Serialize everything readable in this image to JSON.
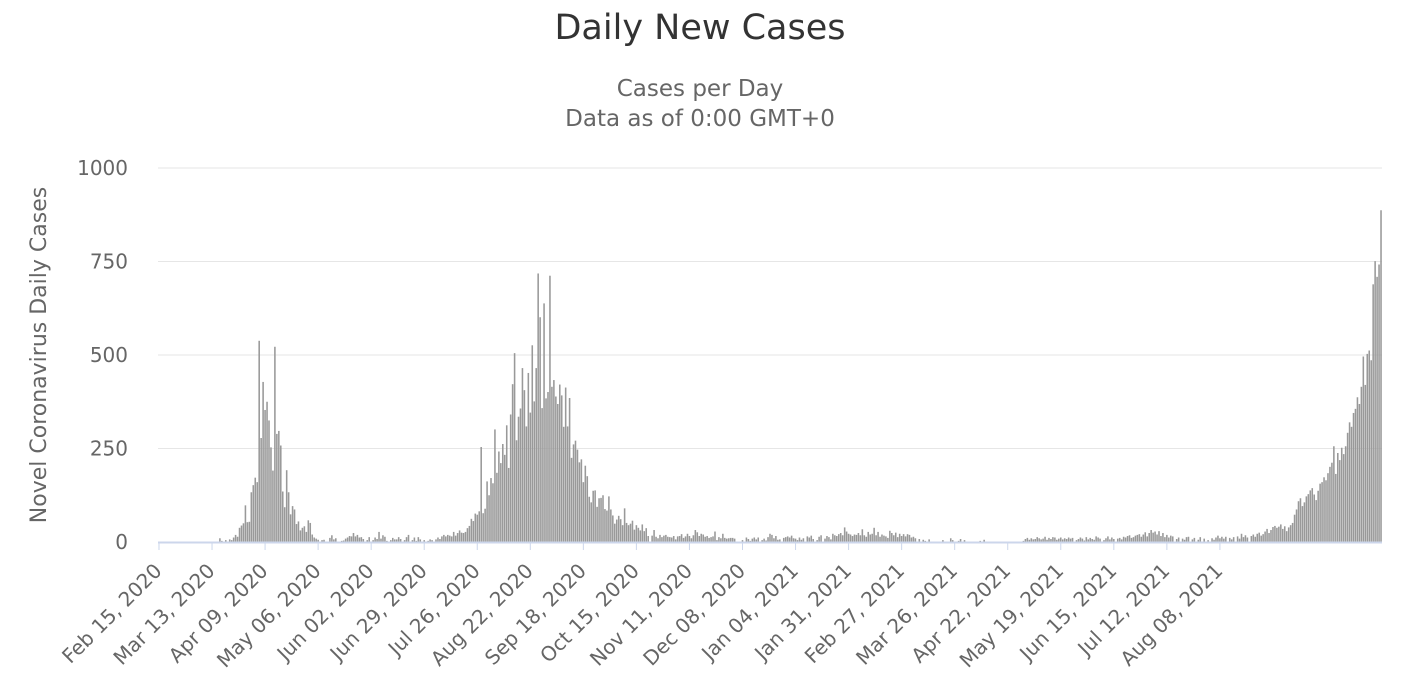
{
  "chart_data": {
    "type": "bar",
    "title": "Daily New Cases",
    "subtitle_lines": [
      "Cases per Day",
      "Data as of 0:00 GMT+0"
    ],
    "ylabel": "Novel Coronavirus Daily Cases",
    "xlabel": "",
    "ylim": [
      0,
      1000
    ],
    "yticks": [
      0,
      250,
      500,
      750,
      1000
    ],
    "xticks": [
      "Feb 15, 2020",
      "Mar 13, 2020",
      "Apr 09, 2020",
      "May 06, 2020",
      "Jun 02, 2020",
      "Jun 29, 2020",
      "Jul 26, 2020",
      "Aug 22, 2020",
      "Sep 18, 2020",
      "Oct 15, 2020",
      "Nov 11, 2020",
      "Dec 08, 2020",
      "Jan 04, 2021",
      "Jan 31, 2021",
      "Feb 27, 2021",
      "Mar 26, 2021",
      "Apr 22, 2021",
      "May 19, 2021",
      "Jun 15, 2021",
      "Jul 12, 2021",
      "Aug 08, 2021"
    ],
    "start_date": "2020-02-15",
    "series": [
      {
        "color": "#999999",
        "values": [
          0,
          0,
          0,
          0,
          0,
          0,
          0,
          0,
          0,
          0,
          0,
          0,
          0,
          0,
          0,
          0,
          0,
          0,
          0,
          0,
          0,
          0,
          0,
          0,
          0,
          0,
          0,
          0,
          0,
          0,
          1,
          10,
          3,
          0,
          5,
          0,
          7,
          5,
          12,
          19,
          14,
          38,
          44,
          50,
          98,
          53,
          54,
          133,
          152,
          172,
          160,
          538,
          278,
          428,
          353,
          375,
          325,
          253,
          191,
          522,
          289,
          297,
          258,
          135,
          93,
          192,
          133,
          74,
          96,
          87,
          48,
          55,
          31,
          38,
          42,
          27,
          58,
          51,
          20,
          12,
          9,
          6,
          0,
          5,
          6,
          0,
          0,
          11,
          18,
          7,
          10,
          0,
          0,
          3,
          4,
          9,
          12,
          16,
          15,
          24,
          15,
          19,
          12,
          13,
          8,
          0,
          5,
          13,
          0,
          5,
          12,
          8,
          27,
          9,
          18,
          14,
          3,
          0,
          5,
          11,
          7,
          7,
          13,
          8,
          0,
          5,
          13,
          19,
          0,
          5,
          12,
          3,
          13,
          7,
          0,
          5,
          0,
          3,
          7,
          5,
          0,
          7,
          12,
          8,
          15,
          19,
          15,
          19,
          17,
          15,
          27,
          17,
          24,
          31,
          25,
          24,
          27,
          37,
          43,
          62,
          56,
          76,
          73,
          82,
          254,
          77,
          89,
          162,
          125,
          171,
          157,
          301,
          185,
          242,
          211,
          262,
          233,
          312,
          198,
          341,
          422,
          505,
          272,
          335,
          357,
          465,
          406,
          309,
          452,
          346,
          526,
          376,
          465,
          718,
          601,
          358,
          638,
          384,
          401,
          712,
          415,
          433,
          389,
          369,
          421,
          392,
          308,
          413,
          309,
          385,
          225,
          261,
          271,
          247,
          213,
          221,
          160,
          204,
          176,
          121,
          106,
          137,
          138,
          94,
          117,
          118,
          125,
          88,
          84,
          122,
          87,
          71,
          49,
          60,
          70,
          61,
          45,
          90,
          51,
          45,
          49,
          57,
          33,
          45,
          38,
          31,
          47,
          29,
          37,
          16,
          0,
          17,
          32,
          14,
          10,
          19,
          13,
          17,
          19,
          14,
          13,
          12,
          16,
          7,
          15,
          16,
          21,
          11,
          15,
          22,
          16,
          10,
          18,
          32,
          26,
          16,
          22,
          20,
          14,
          16,
          11,
          13,
          15,
          28,
          5,
          13,
          10,
          22,
          11,
          9,
          10,
          11,
          11,
          9,
          0,
          0,
          0,
          5,
          0,
          12,
          8,
          3,
          9,
          12,
          7,
          12,
          0,
          5,
          9,
          4,
          13,
          22,
          19,
          10,
          16,
          6,
          7,
          0,
          11,
          13,
          15,
          12,
          17,
          10,
          9,
          5,
          12,
          6,
          10,
          0,
          15,
          12,
          17,
          8,
          0,
          5,
          14,
          18,
          0,
          9,
          16,
          13,
          7,
          22,
          18,
          16,
          21,
          24,
          18,
          39,
          28,
          22,
          20,
          16,
          20,
          19,
          24,
          18,
          34,
          18,
          14,
          27,
          20,
          22,
          38,
          18,
          27,
          14,
          20,
          17,
          15,
          11,
          30,
          24,
          18,
          25,
          13,
          22,
          16,
          21,
          15,
          21,
          19,
          12,
          14,
          10,
          0,
          8,
          0,
          6,
          3,
          0,
          7,
          0,
          0,
          0,
          0,
          0,
          0,
          5,
          0,
          0,
          0,
          10,
          5,
          0,
          0,
          3,
          8,
          0,
          5,
          0,
          0,
          0,
          0,
          0,
          0,
          0,
          3,
          0,
          6,
          0,
          0,
          0,
          0,
          0,
          0,
          0,
          0,
          0,
          0,
          0,
          0,
          0,
          0,
          0,
          0,
          0,
          0,
          0,
          3,
          8,
          11,
          6,
          10,
          7,
          8,
          13,
          10,
          7,
          9,
          14,
          6,
          11,
          8,
          13,
          12,
          6,
          9,
          12,
          7,
          10,
          8,
          12,
          9,
          11,
          0,
          5,
          8,
          12,
          9,
          4,
          13,
          7,
          11,
          8,
          6,
          15,
          12,
          9,
          0,
          5,
          10,
          15,
          7,
          12,
          8,
          0,
          9,
          11,
          7,
          14,
          12,
          16,
          18,
          11,
          13,
          17,
          19,
          21,
          14,
          20,
          26,
          15,
          24,
          32,
          25,
          28,
          20,
          29,
          16,
          24,
          13,
          19,
          12,
          17,
          15,
          0,
          8,
          12,
          0,
          9,
          6,
          13,
          14,
          0,
          7,
          11,
          0,
          6,
          13,
          0,
          9,
          0,
          5,
          0,
          10,
          6,
          12,
          17,
          10,
          14,
          9,
          14,
          0,
          11,
          7,
          13,
          0,
          15,
          9,
          22,
          13,
          18,
          12,
          0,
          16,
          20,
          14,
          22,
          25,
          17,
          21,
          28,
          35,
          24,
          32,
          40,
          43,
          38,
          41,
          47,
          35,
          42,
          29,
          39,
          45,
          51,
          73,
          87,
          109,
          117,
          96,
          106,
          122,
          128,
          138,
          144,
          127,
          112,
          137,
          156,
          160,
          173,
          165,
          184,
          201,
          212,
          256,
          182,
          238,
          219,
          252,
          235,
          256,
          292,
          320,
          308,
          345,
          356,
          387,
          369,
          415,
          496,
          420,
          503,
          512,
          486,
          689,
          751,
          709,
          742,
          887
        ]
      }
    ]
  }
}
